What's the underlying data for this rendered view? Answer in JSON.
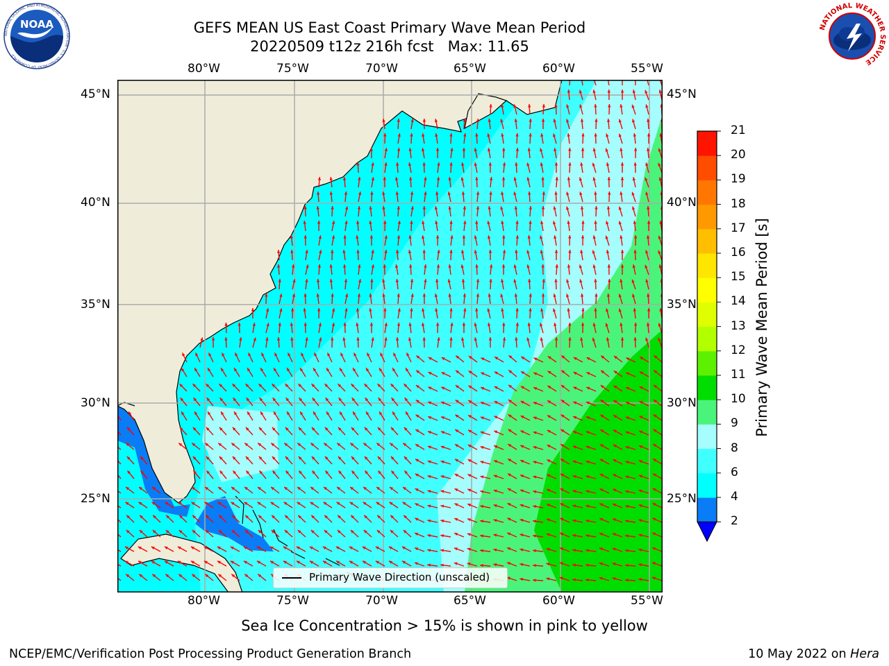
{
  "header": {
    "title_line1": "GEFS MEAN US East Coast Primary Wave Mean Period",
    "title_line2": "20220509 t12z 216h fcst   Max: 11.65"
  },
  "logos": {
    "noaa_text": "NOAA",
    "noaa_ring": "NATIONAL OCEANIC AND ATMOSPHERIC ADMINISTRATION · U.S. DEPARTMENT OF COMMERCE",
    "nws_ring": "NATIONAL WEATHER SERVICE"
  },
  "map": {
    "lon_labels": [
      "80°W",
      "75°W",
      "70°W",
      "65°W",
      "60°W",
      "55°W"
    ],
    "lat_labels": [
      "45°N",
      "40°N",
      "35°N",
      "30°N",
      "25°N"
    ],
    "legend_label": "Primary Wave Direction (unscaled)",
    "colors": {
      "land": "#efedda",
      "ocean_4_6": "#00ffff",
      "ocean_6_8": "#40ffff",
      "ocean_8_9": "#a5fdfd",
      "green_9_10": "#4af47a",
      "green_10_11": "#00dd00",
      "blue_2_4": "#0a7cf5",
      "arrow": "#ff0000"
    }
  },
  "colorbar": {
    "title": "Primary Wave Mean Period [s]",
    "levels": [
      "2",
      "4",
      "6",
      "8",
      "9",
      "10",
      "11",
      "12",
      "13",
      "14",
      "15",
      "16",
      "17",
      "18",
      "19",
      "20",
      "21"
    ],
    "colors": [
      "#0a7cf5",
      "#00ffff",
      "#40ffff",
      "#a5fdfd",
      "#4af47a",
      "#00dd00",
      "#5df000",
      "#b2ff00",
      "#dfff00",
      "#ffff00",
      "#ffe600",
      "#ffbf00",
      "#ff9900",
      "#ff7700",
      "#ff4d00",
      "#ff1400"
    ],
    "under_color": "#0000ff"
  },
  "notes": {
    "sea_ice": "Sea Ice Concentration > 15% is shown in pink to yellow",
    "producer": "NCEP/EMC/Verification Post Processing Product Generation Branch",
    "date": "10 May 2022 on ",
    "host": "Hera"
  }
}
